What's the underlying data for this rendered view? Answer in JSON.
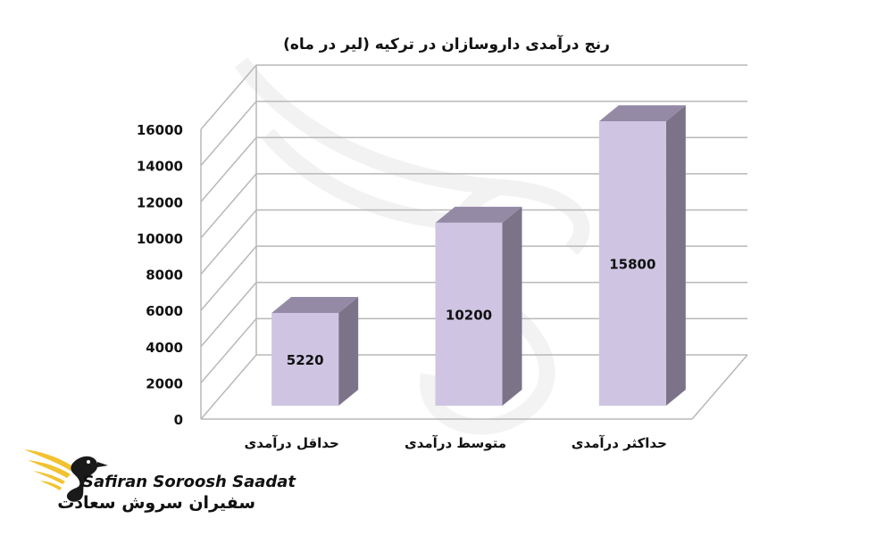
{
  "chart_data": {
    "type": "bar",
    "title": "رنج درآمدی داروسازان در ترکیه (لیر در ماه)",
    "categories": [
      "حداقل درآمدی",
      "متوسط درآمدی",
      "حداکثر درآمدی"
    ],
    "values": [
      5220,
      10200,
      15800
    ],
    "data_labels": [
      "5220",
      "10200",
      "15800"
    ],
    "ylim": [
      0,
      16000
    ],
    "y_ticks": [
      0,
      2000,
      4000,
      6000,
      8000,
      10000,
      12000,
      14000,
      16000
    ],
    "grid": true,
    "three_d": true,
    "bar_front_color": "#cfc5e3",
    "bar_top_color": "#958aa6",
    "bar_side_color": "#7c7389",
    "grid_color": "#b8b8b8"
  },
  "branding": {
    "name_en": "Safiran Soroosh Saadat",
    "name_fa": "سفیران سروش سعادت",
    "logo_color": "#f2c230",
    "logo_dark": "#1a1a1a"
  }
}
